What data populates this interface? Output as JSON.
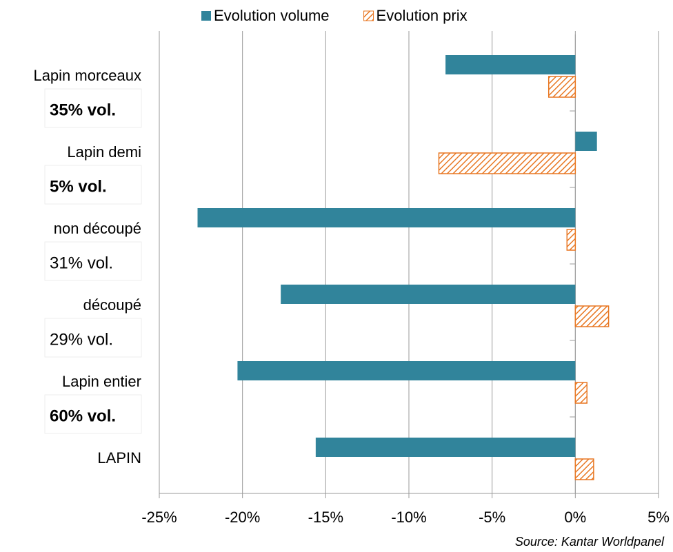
{
  "chart_data": {
    "type": "hbar",
    "categories": [
      "Lapin morceaux",
      "Lapin demi",
      "non découpé",
      "découpé",
      "Lapin entier",
      "LAPIN"
    ],
    "series": [
      {
        "name": "Evolution volume",
        "color": "#31849b",
        "values": [
          -7.8,
          1.3,
          -22.7,
          -17.7,
          -20.3,
          -15.6
        ]
      },
      {
        "name": "Evolution prix",
        "color": "#e87722",
        "hatch": true,
        "values": [
          -1.6,
          -8.2,
          -0.5,
          2.0,
          0.7,
          1.1
        ]
      }
    ],
    "annotations": [
      {
        "text": "35% vol.",
        "bold": true
      },
      {
        "text": "5% vol.",
        "bold": true
      },
      {
        "text": "31% vol.",
        "bold": false
      },
      {
        "text": "29% vol.",
        "bold": false
      },
      {
        "text": "60% vol.",
        "bold": true
      },
      {
        "text": "",
        "bold": false
      }
    ],
    "annotation_color": "#c00000",
    "xlim": [
      -25,
      5
    ],
    "xticks": [
      {
        "value": -25,
        "label": "-25%"
      },
      {
        "value": -20,
        "label": "-20%"
      },
      {
        "value": -15,
        "label": "-15%"
      },
      {
        "value": -10,
        "label": "-10%"
      },
      {
        "value": -5,
        "label": "-5%"
      },
      {
        "value": 0,
        "label": "0%"
      },
      {
        "value": 5,
        "label": "5%"
      }
    ],
    "grid": true,
    "legend": "top",
    "source": "Source: Kantar Worldpanel"
  }
}
